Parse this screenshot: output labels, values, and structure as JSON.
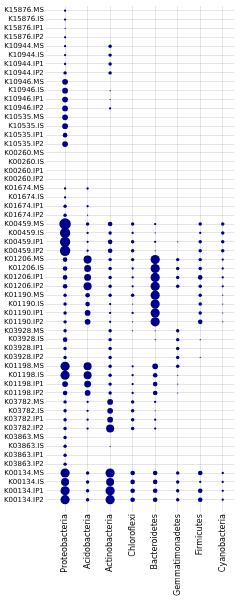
{
  "chart_data": {
    "type": "bubble",
    "x": [
      "Proteobacteria",
      "Acidobacteria",
      "Actinobacteria",
      "Chloroflexi",
      "Bacteroidetes",
      "Gemmatimonadetes",
      "Firmicutes",
      "Cyanobacteria"
    ],
    "y": [
      "K15876.MS",
      "K15876.IS",
      "K15876.IP1",
      "K15876.IP2",
      "K10944.MS",
      "K10944.IS",
      "K10944.IP1",
      "K10944.IP2",
      "K10946.MS",
      "K10946.IS",
      "K10946.IP1",
      "K10946.IP2",
      "K10535.MS",
      "K10535.IS",
      "K10535.IP1",
      "K10535.IP2",
      "K00260.MS",
      "K00260.IS",
      "K00260.IP1",
      "K00260.IP2",
      "K01674.MS",
      "K01674.IS",
      "K01674.IP1",
      "K01674.IP2",
      "K00459.MS",
      "K00459.IS",
      "K00459.IP1",
      "K00459.IP2",
      "K01206.MS",
      "K01206.IS",
      "K01206.IP1",
      "K01206.IP2",
      "K01190.MS",
      "K01190.IS",
      "K01190.IP1",
      "K01190.IP2",
      "K03928.MS",
      "K03928.IS",
      "K03928.IP1",
      "K03928.IP2",
      "K01198.MS",
      "K01198.IS",
      "K01198.IP1",
      "K01198.IP2",
      "K03782.MS",
      "K03782.IS",
      "K03782.IP1",
      "K03782.IP2",
      "K03863.MS",
      "K03863.IS",
      "K03863.IP1",
      "K03863.IP2",
      "K00134.MS",
      "K00134.IS",
      "K00134.IP1",
      "K00134.IP2"
    ],
    "sizes": [
      [
        1,
        0,
        0,
        0,
        0,
        0,
        0,
        0
      ],
      [
        1,
        0,
        0,
        0,
        0,
        0,
        0,
        0
      ],
      [
        0.5,
        0,
        0,
        0,
        0,
        0,
        0,
        0
      ],
      [
        1,
        0,
        0,
        0,
        0,
        0,
        0,
        0
      ],
      [
        1,
        0,
        1.5,
        0,
        0,
        0,
        0,
        0
      ],
      [
        1,
        0,
        1.5,
        0,
        0,
        0,
        0,
        0
      ],
      [
        1,
        0,
        1.5,
        0,
        0,
        0,
        0,
        0
      ],
      [
        1.5,
        0,
        1.5,
        0,
        0,
        0,
        0,
        0
      ],
      [
        2.5,
        0,
        0,
        0,
        0,
        0,
        0,
        0
      ],
      [
        2.5,
        0,
        0.5,
        0,
        0,
        0,
        0,
        0
      ],
      [
        2.5,
        0,
        0.5,
        0,
        0,
        0,
        0,
        0
      ],
      [
        2.5,
        0,
        1,
        0,
        0,
        0,
        0,
        0
      ],
      [
        2.5,
        0,
        0,
        0,
        0,
        0,
        0,
        0
      ],
      [
        2.5,
        0,
        0,
        0,
        0,
        0,
        0,
        0
      ],
      [
        2,
        0,
        0,
        0,
        0,
        0,
        0,
        0
      ],
      [
        2.5,
        0,
        0,
        0,
        0,
        0,
        0,
        0
      ],
      [
        0,
        0,
        0,
        0,
        0,
        0,
        0,
        0
      ],
      [
        0,
        0,
        0,
        0,
        0,
        0,
        0,
        0
      ],
      [
        0,
        0,
        0,
        0,
        0,
        0,
        0,
        0
      ],
      [
        0,
        0,
        0,
        0,
        0,
        0,
        0,
        0
      ],
      [
        1,
        1,
        0,
        0,
        0,
        0,
        0,
        0
      ],
      [
        1,
        0,
        0,
        0,
        0,
        0,
        0,
        0
      ],
      [
        1.5,
        1,
        0,
        0,
        0,
        0,
        0,
        0
      ],
      [
        1.5,
        0.5,
        0,
        0,
        0,
        0,
        0,
        0
      ],
      [
        5,
        1.5,
        2,
        1.5,
        1,
        0,
        1.5,
        1.5
      ],
      [
        4.5,
        1,
        1.5,
        1,
        0.5,
        0,
        1,
        1.5
      ],
      [
        4.5,
        1,
        2,
        1.5,
        1,
        0.5,
        1.5,
        1.5
      ],
      [
        4.5,
        1,
        2,
        1.5,
        0.5,
        0,
        1.5,
        1.5
      ],
      [
        2,
        3.5,
        1.5,
        1.5,
        4,
        1.5,
        1.5,
        1
      ],
      [
        2,
        3,
        1.5,
        1,
        4,
        1.5,
        1.5,
        1
      ],
      [
        2,
        3,
        1.5,
        1,
        4,
        1.5,
        2,
        1
      ],
      [
        2,
        3.5,
        1.5,
        1,
        4,
        1.5,
        1.5,
        1
      ],
      [
        1.5,
        2,
        1.5,
        1.5,
        4,
        0,
        1.5,
        0.5
      ],
      [
        1.5,
        2,
        1,
        0.5,
        4,
        0,
        1.5,
        0.5
      ],
      [
        1.5,
        2.5,
        1,
        1,
        4,
        0,
        1.5,
        0.5
      ],
      [
        1.5,
        2.5,
        1,
        0.5,
        4,
        0,
        2,
        0.5
      ],
      [
        1.5,
        0,
        1.5,
        0.5,
        0.5,
        1.5,
        0,
        0
      ],
      [
        2,
        0,
        1.5,
        0,
        0.5,
        1.5,
        0.5,
        0
      ],
      [
        1.5,
        0,
        1.5,
        0,
        0,
        1.5,
        0,
        0
      ],
      [
        1.5,
        0,
        1.5,
        0,
        0,
        1.5,
        0.5,
        0
      ],
      [
        4,
        3.5,
        1.5,
        1,
        2.5,
        1.5,
        0,
        0
      ],
      [
        4,
        3.5,
        1.5,
        1,
        2,
        0.5,
        0,
        0
      ],
      [
        2.5,
        3,
        1.5,
        1,
        2,
        0.5,
        0,
        0
      ],
      [
        2,
        2.5,
        1.5,
        1,
        2,
        0.5,
        0,
        0
      ],
      [
        1.5,
        1,
        2.5,
        1.5,
        1,
        0,
        0,
        0
      ],
      [
        1.5,
        1,
        2.5,
        1.5,
        0.5,
        0,
        0,
        0
      ],
      [
        1.5,
        1,
        2.5,
        1.5,
        1,
        0,
        0,
        0
      ],
      [
        1.5,
        1,
        3.5,
        1.5,
        1,
        0,
        0,
        0
      ],
      [
        1.5,
        0,
        0,
        0,
        0,
        0,
        0,
        0
      ],
      [
        1.5,
        0,
        0.5,
        0,
        0,
        0,
        0,
        0
      ],
      [
        1.5,
        0,
        0,
        0,
        0,
        0,
        0,
        0
      ],
      [
        1.5,
        0,
        0,
        0,
        0,
        0,
        0,
        0
      ],
      [
        4,
        1.5,
        4,
        2,
        2,
        1.5,
        2,
        1
      ],
      [
        3.5,
        1.5,
        3.5,
        2,
        2,
        1.5,
        1,
        1
      ],
      [
        4,
        1.5,
        4,
        2,
        2,
        1.5,
        2,
        1
      ],
      [
        4,
        1.5,
        4,
        2,
        2,
        1.5,
        2,
        1
      ]
    ],
    "color": "#00008B",
    "grid": true
  }
}
